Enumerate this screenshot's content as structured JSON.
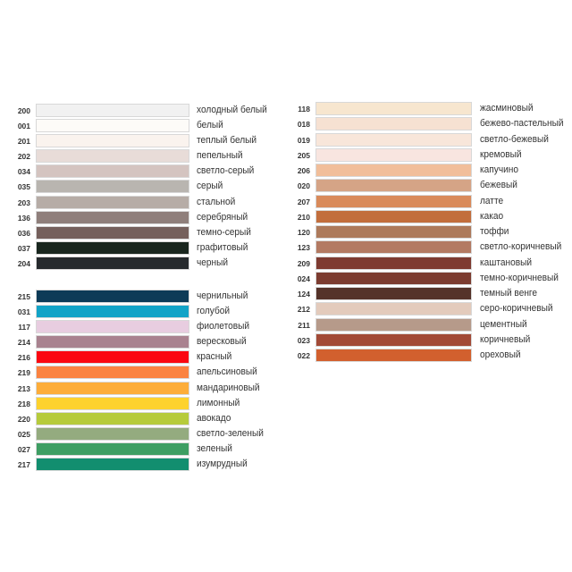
{
  "groups": [
    {
      "items": [
        {
          "code": "200",
          "name": "холодный белый",
          "color": "#f1f1f1"
        },
        {
          "code": "001",
          "name": "белый",
          "color": "#fdfbf8"
        },
        {
          "code": "201",
          "name": "теплый белый",
          "color": "#faf3ee"
        },
        {
          "code": "202",
          "name": "пепельный",
          "color": "#e8dcd8"
        },
        {
          "code": "034",
          "name": "светло-серый",
          "color": "#d4c4c0"
        },
        {
          "code": "035",
          "name": "серый",
          "color": "#b9b5b0"
        },
        {
          "code": "203",
          "name": "стальной",
          "color": "#b6aca6"
        },
        {
          "code": "136",
          "name": "серебряный",
          "color": "#8f7f7b"
        },
        {
          "code": "036",
          "name": "темно-серый",
          "color": "#75605c"
        },
        {
          "code": "037",
          "name": "графитовый",
          "color": "#19261e"
        },
        {
          "code": "204",
          "name": "черный",
          "color": "#262a2d"
        }
      ]
    },
    {
      "items": [
        {
          "code": "215",
          "name": "чернильный",
          "color": "#0d3b57"
        },
        {
          "code": "031",
          "name": "голубой",
          "color": "#12a3c7"
        },
        {
          "code": "117",
          "name": "фиолетовый",
          "color": "#e8cde0"
        },
        {
          "code": "214",
          "name": "вересковый",
          "color": "#a9828f"
        },
        {
          "code": "216",
          "name": "красный",
          "color": "#fb0711"
        },
        {
          "code": "219",
          "name": "апельсиновый",
          "color": "#fb8341"
        },
        {
          "code": "213",
          "name": "мандариновый",
          "color": "#fdad3a"
        },
        {
          "code": "218",
          "name": "лимонный",
          "color": "#fdd22e"
        },
        {
          "code": "220",
          "name": "авокадо",
          "color": "#b6cb3c"
        },
        {
          "code": "025",
          "name": "светло-зеленый",
          "color": "#94ab7f"
        },
        {
          "code": "027",
          "name": "зеленый",
          "color": "#3e9e63"
        },
        {
          "code": "217",
          "name": "изумрудный",
          "color": "#128e6f"
        }
      ]
    },
    {
      "items": [
        {
          "code": "118",
          "name": "жасминовый",
          "color": "#f7e6cf"
        },
        {
          "code": "018",
          "name": "бежево-пастельный",
          "color": "#f6e1d2"
        },
        {
          "code": "019",
          "name": "светло-бежевый",
          "color": "#f8e6da"
        },
        {
          "code": "205",
          "name": "кремовый",
          "color": "#f8e5e0"
        },
        {
          "code": "206",
          "name": "капучино",
          "color": "#f1be9a"
        },
        {
          "code": "020",
          "name": "бежевый",
          "color": "#d5a486"
        },
        {
          "code": "207",
          "name": "латте",
          "color": "#d98a5a"
        },
        {
          "code": "210",
          "name": "какао",
          "color": "#c26e3d"
        },
        {
          "code": "120",
          "name": "тоффи",
          "color": "#ad7a5b"
        },
        {
          "code": "123",
          "name": "светло-коричневый",
          "color": "#b37a62"
        },
        {
          "code": "209",
          "name": "каштановый",
          "color": "#7e3b31"
        },
        {
          "code": "024",
          "name": "темно-коричневый",
          "color": "#7c3c30"
        },
        {
          "code": "124",
          "name": "темный венге",
          "color": "#55332a"
        },
        {
          "code": "212",
          "name": "серо-коричневый",
          "color": "#e3cbbc"
        },
        {
          "code": "211",
          "name": "цементный",
          "color": "#b69a8a"
        },
        {
          "code": "023",
          "name": "коричневый",
          "color": "#a24a37"
        },
        {
          "code": "022",
          "name": "ореховый",
          "color": "#d2602e"
        }
      ]
    }
  ]
}
